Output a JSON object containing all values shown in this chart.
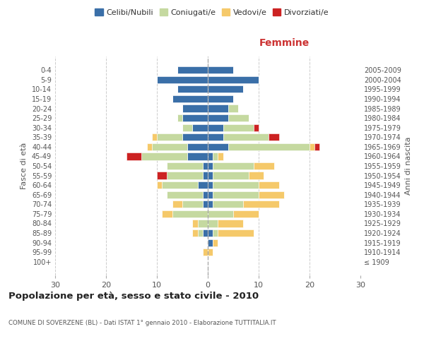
{
  "age_groups": [
    "100+",
    "95-99",
    "90-94",
    "85-89",
    "80-84",
    "75-79",
    "70-74",
    "65-69",
    "60-64",
    "55-59",
    "50-54",
    "45-49",
    "40-44",
    "35-39",
    "30-34",
    "25-29",
    "20-24",
    "15-19",
    "10-14",
    "5-9",
    "0-4"
  ],
  "birth_years": [
    "≤ 1909",
    "1910-1914",
    "1915-1919",
    "1920-1924",
    "1925-1929",
    "1930-1934",
    "1935-1939",
    "1940-1944",
    "1945-1949",
    "1950-1954",
    "1955-1959",
    "1960-1964",
    "1965-1969",
    "1970-1974",
    "1975-1979",
    "1980-1984",
    "1985-1989",
    "1990-1994",
    "1995-1999",
    "2000-2004",
    "2005-2009"
  ],
  "colors": {
    "celibi": "#3a6fa8",
    "coniugati": "#c5d9a0",
    "vedovi": "#f5c96a",
    "divorziati": "#cc2222"
  },
  "males": {
    "celibi": [
      0,
      0,
      0,
      1,
      0,
      0,
      1,
      1,
      2,
      1,
      1,
      4,
      4,
      5,
      3,
      5,
      5,
      7,
      6,
      10,
      6
    ],
    "coniugati": [
      0,
      0,
      0,
      1,
      2,
      7,
      4,
      7,
      7,
      7,
      7,
      9,
      7,
      5,
      2,
      1,
      0,
      0,
      0,
      0,
      0
    ],
    "vedovi": [
      0,
      1,
      0,
      1,
      1,
      2,
      2,
      0,
      1,
      0,
      0,
      0,
      1,
      1,
      0,
      0,
      0,
      0,
      0,
      0,
      0
    ],
    "divorziati": [
      0,
      0,
      0,
      0,
      0,
      0,
      0,
      0,
      0,
      2,
      0,
      3,
      0,
      0,
      0,
      0,
      0,
      0,
      0,
      0,
      0
    ]
  },
  "females": {
    "celibi": [
      0,
      0,
      1,
      1,
      0,
      0,
      1,
      1,
      1,
      1,
      1,
      1,
      4,
      3,
      3,
      4,
      4,
      5,
      7,
      10,
      5
    ],
    "coniugati": [
      0,
      0,
      0,
      1,
      2,
      5,
      6,
      9,
      9,
      7,
      8,
      1,
      16,
      9,
      6,
      4,
      2,
      0,
      0,
      0,
      0
    ],
    "vedovi": [
      0,
      1,
      1,
      7,
      5,
      5,
      7,
      5,
      4,
      3,
      4,
      1,
      1,
      0,
      0,
      0,
      0,
      0,
      0,
      0,
      0
    ],
    "divorziati": [
      0,
      0,
      0,
      0,
      0,
      0,
      0,
      0,
      0,
      0,
      0,
      0,
      1,
      2,
      1,
      0,
      0,
      0,
      0,
      0,
      0
    ]
  },
  "title": "Popolazione per età, sesso e stato civile - 2010",
  "subtitle": "COMUNE DI SOVERZENE (BL) - Dati ISTAT 1° gennaio 2010 - Elaborazione TUTTITALIA.IT",
  "xlabel_right": "Femmine",
  "ylabel_left": "Fasce di età",
  "ylabel_right": "Anni di nascita",
  "xlim": 30,
  "background_color": "#ffffff",
  "grid_color": "#cccccc",
  "legend_labels": [
    "Celibi/Nubili",
    "Coniugati/e",
    "Vedovi/e",
    "Divorziati/e"
  ]
}
